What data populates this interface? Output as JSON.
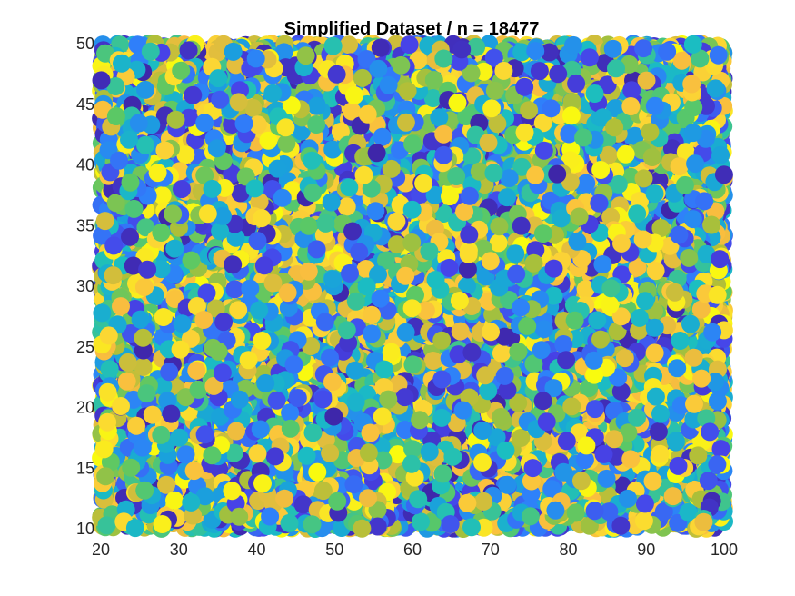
{
  "chart_data": {
    "type": "scatter",
    "title": "Simplified Dataset / n = 18477",
    "xlabel": "",
    "ylabel": "",
    "xlim": [
      20,
      100
    ],
    "ylim": [
      10,
      50
    ],
    "x_ticks": [
      20,
      30,
      40,
      50,
      60,
      70,
      80,
      90,
      100
    ],
    "y_ticks": [
      10,
      15,
      20,
      25,
      30,
      35,
      40,
      45,
      50
    ],
    "grid": false,
    "legend": "none",
    "n_points": 18477,
    "point_distribution": "uniform random over x in [20, 100], y in [10, 50]",
    "color_values_range": [
      0,
      1
    ],
    "colormap": "parula",
    "colormap_stops": [
      "#3e26a8",
      "#4743e8",
      "#2f80fa",
      "#1aa0dc",
      "#1bbec1",
      "#5bc865",
      "#aebf38",
      "#f9bd3f",
      "#fbd833",
      "#f9fb0e"
    ]
  }
}
